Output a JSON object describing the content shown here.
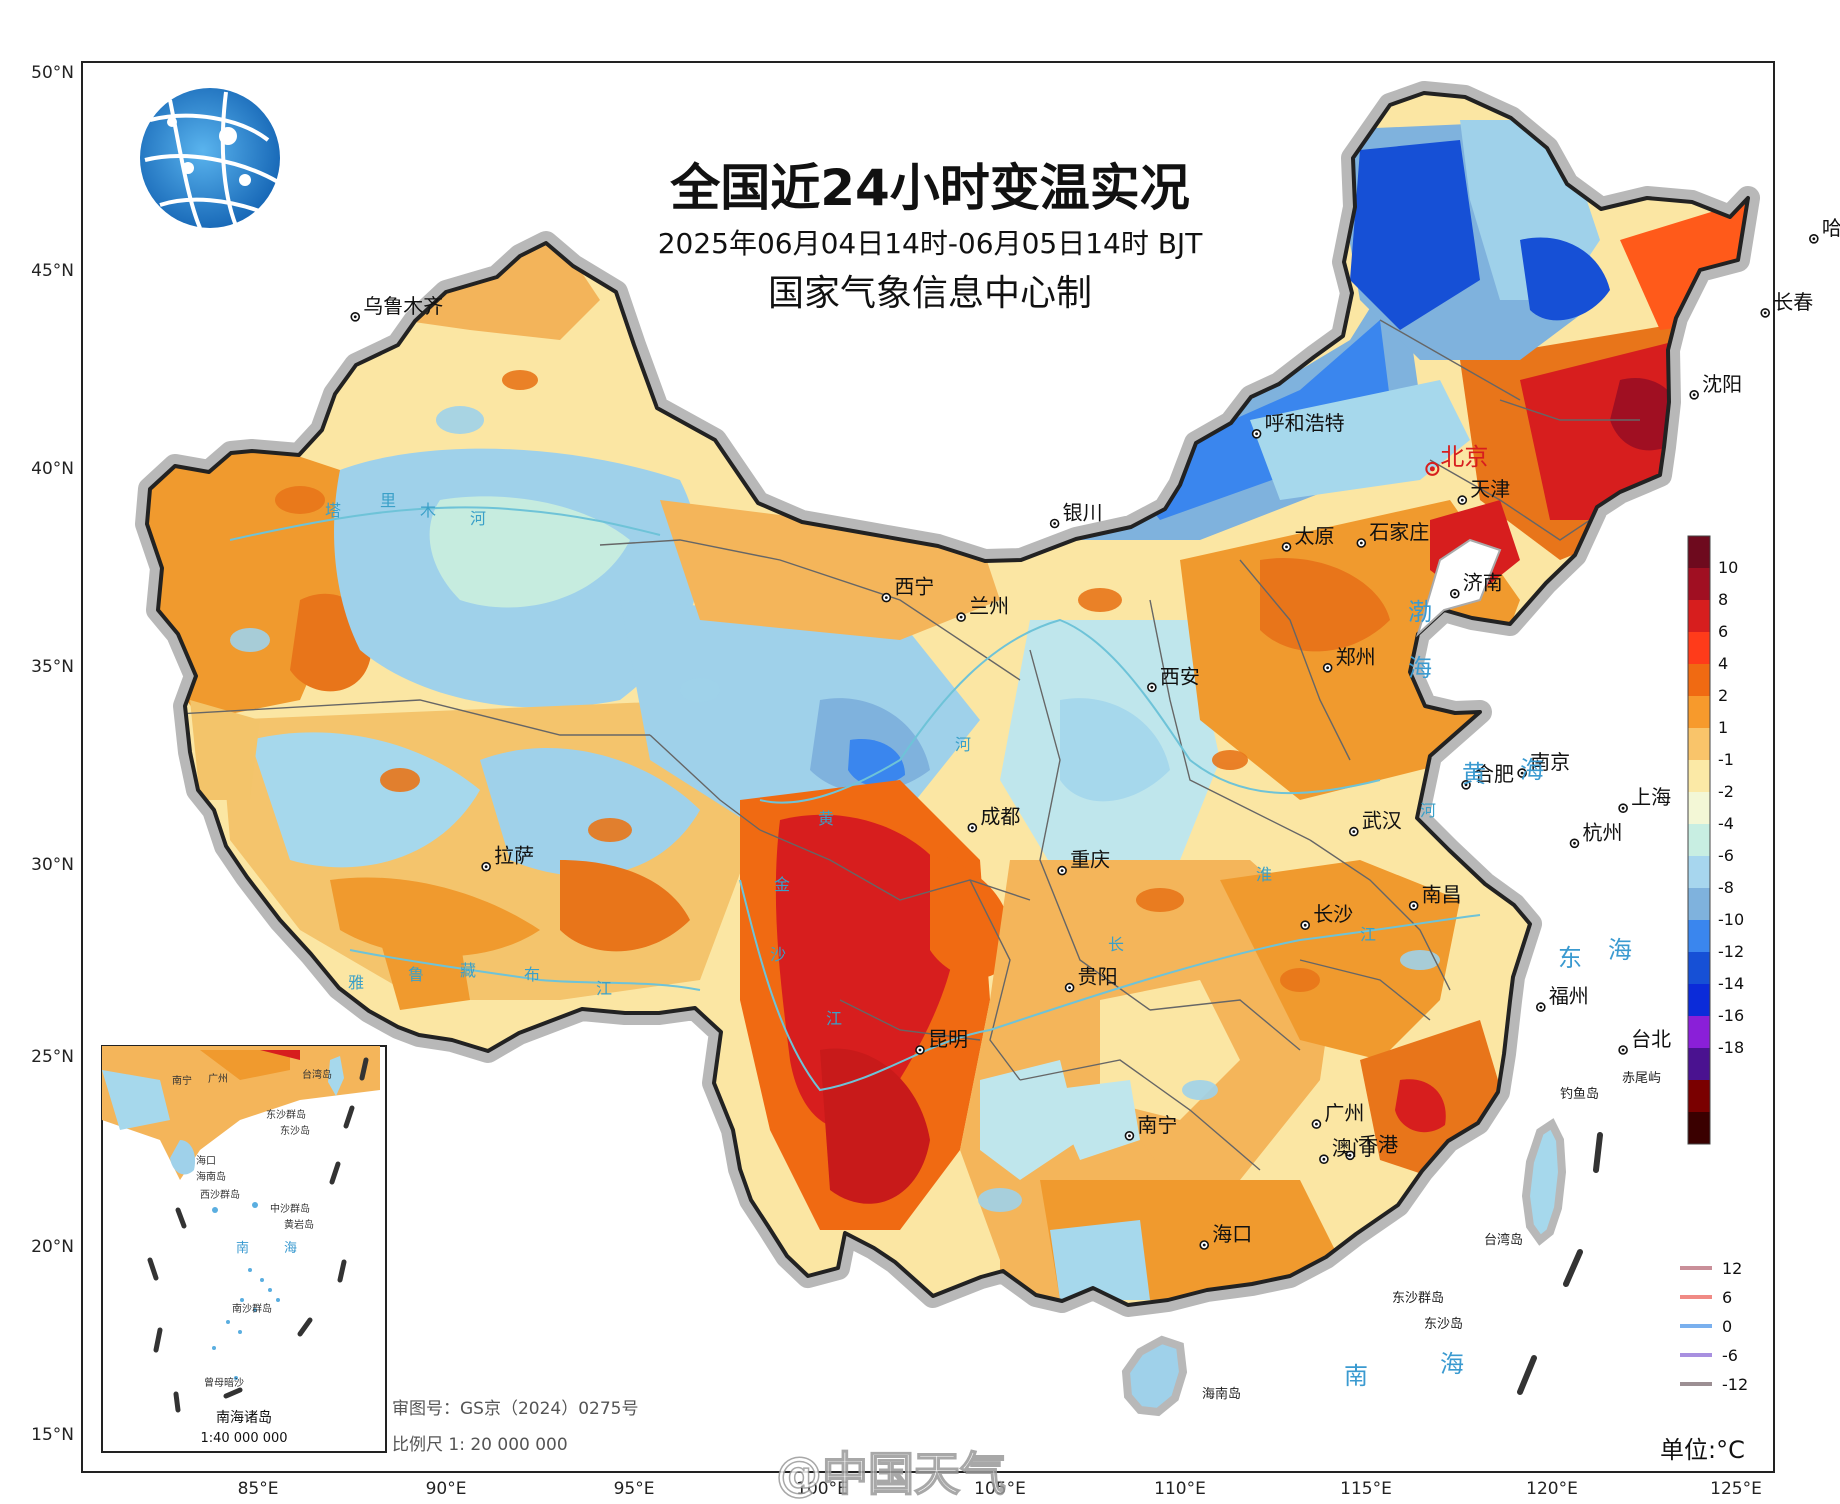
{
  "title": "全国近24小时变温实况",
  "subtitle": "2025年06月04日14时-06月05日14时 BJT",
  "producer": "国家气象信息中心制",
  "logo": "cma-globe-logo",
  "axes": {
    "lat_labels": [
      "50°N",
      "45°N",
      "40°N",
      "35°N",
      "30°N",
      "25°N",
      "20°N",
      "15°N"
    ],
    "lon_labels": [
      "85°E",
      "90°E",
      "95°E",
      "100°E",
      "105°E",
      "110°E",
      "115°E",
      "120°E",
      "125°E"
    ]
  },
  "cities": [
    {
      "name": "乌鲁木齐",
      "lon": 87.6,
      "lat": 43.8
    },
    {
      "name": "哈尔滨",
      "lon": 126.6,
      "lat": 45.8
    },
    {
      "name": "长春",
      "lon": 125.3,
      "lat": 43.9
    },
    {
      "name": "沈阳",
      "lon": 123.4,
      "lat": 41.8
    },
    {
      "name": "呼和浩特",
      "lon": 111.7,
      "lat": 40.8
    },
    {
      "name": "北京",
      "lon": 116.4,
      "lat": 39.9,
      "capital": true
    },
    {
      "name": "天津",
      "lon": 117.2,
      "lat": 39.1
    },
    {
      "name": "石家庄",
      "lon": 114.5,
      "lat": 38.0
    },
    {
      "name": "银川",
      "lon": 106.3,
      "lat": 38.5
    },
    {
      "name": "太原",
      "lon": 112.5,
      "lat": 37.9
    },
    {
      "name": "济南",
      "lon": 117.0,
      "lat": 36.7
    },
    {
      "name": "西宁",
      "lon": 101.8,
      "lat": 36.6
    },
    {
      "name": "兰州",
      "lon": 103.8,
      "lat": 36.1
    },
    {
      "name": "西安",
      "lon": 108.9,
      "lat": 34.3
    },
    {
      "name": "郑州",
      "lon": 113.6,
      "lat": 34.8
    },
    {
      "name": "合肥",
      "lon": 117.3,
      "lat": 31.8
    },
    {
      "name": "南京",
      "lon": 118.8,
      "lat": 32.1
    },
    {
      "name": "上海",
      "lon": 121.5,
      "lat": 31.2
    },
    {
      "name": "拉萨",
      "lon": 91.1,
      "lat": 29.7
    },
    {
      "name": "成都",
      "lon": 104.1,
      "lat": 30.7
    },
    {
      "name": "武汉",
      "lon": 114.3,
      "lat": 30.6
    },
    {
      "name": "杭州",
      "lon": 120.2,
      "lat": 30.3
    },
    {
      "name": "重庆",
      "lon": 106.5,
      "lat": 29.6
    },
    {
      "name": "长沙",
      "lon": 113.0,
      "lat": 28.2
    },
    {
      "name": "南昌",
      "lon": 115.9,
      "lat": 28.7
    },
    {
      "name": "福州",
      "lon": 119.3,
      "lat": 26.1
    },
    {
      "name": "贵阳",
      "lon": 106.7,
      "lat": 26.6
    },
    {
      "name": "台北",
      "lon": 121.5,
      "lat": 25.0
    },
    {
      "name": "昆明",
      "lon": 102.7,
      "lat": 25.0
    },
    {
      "name": "广州",
      "lon": 113.3,
      "lat": 23.1
    },
    {
      "name": "南宁",
      "lon": 108.3,
      "lat": 22.8
    },
    {
      "name": "香港",
      "lon": 114.2,
      "lat": 22.3
    },
    {
      "name": "澳门",
      "lon": 113.5,
      "lat": 22.2
    },
    {
      "name": "海口",
      "lon": 110.3,
      "lat": 20.0
    }
  ],
  "water_labels": [
    "渤",
    "海",
    "黄",
    "海",
    "东",
    "海",
    "南",
    "海"
  ],
  "island_labels": [
    "赤尾屿",
    "钓鱼岛",
    "台湾岛",
    "东沙群岛",
    "东沙岛",
    "海南岛"
  ],
  "river_chars": [
    "塔",
    "里",
    "木",
    "河",
    "黄",
    "河",
    "长",
    "江",
    "雅",
    "鲁",
    "藏",
    "布",
    "江",
    "金",
    "沙",
    "江",
    "淮",
    "河"
  ],
  "colorbar": {
    "labels": [
      "10",
      "8",
      "6",
      "4",
      "2",
      "1",
      "-1",
      "-2",
      "-4",
      "-6",
      "-8",
      "-10",
      "-12",
      "-14",
      "-16",
      "-18"
    ],
    "colors": [
      "#6e0a1e",
      "#a00f22",
      "#d71e1e",
      "#ff3b1a",
      "#f06a12",
      "#f79a2c",
      "#f9c46a",
      "#fbe9a6",
      "#f3f7d6",
      "#c8eee2",
      "#a7d6ee",
      "#7fb2dd",
      "#3a86ee",
      "#1650d6",
      "#0b2bd9",
      "#8a1fd8",
      "#4a1290",
      "#7a0000",
      "#3a0000"
    ]
  },
  "isoline_legend": [
    {
      "label": "12",
      "color": "#c98f99"
    },
    {
      "label": "6",
      "color": "#f08a85"
    },
    {
      "label": "0",
      "color": "#7ab0ee"
    },
    {
      "label": "-6",
      "color": "#a890e0"
    },
    {
      "label": "-12",
      "color": "#9c8f93"
    }
  ],
  "approval_number": "审图号：GS京（2024）0275号",
  "scale": "比例尺  1: 20 000 000",
  "unit": "单位:°C",
  "inset": {
    "title": "南海诸岛",
    "scale": "1:40 000 000",
    "labels": [
      "南宁",
      "广州",
      "台湾岛",
      "海口",
      "海南岛",
      "东沙群岛",
      "东沙岛",
      "西沙群岛",
      "中沙群岛",
      "黄岩岛",
      "南",
      "海",
      "南沙群岛",
      "曾母暗沙"
    ]
  },
  "watermark": "@中国天气"
}
